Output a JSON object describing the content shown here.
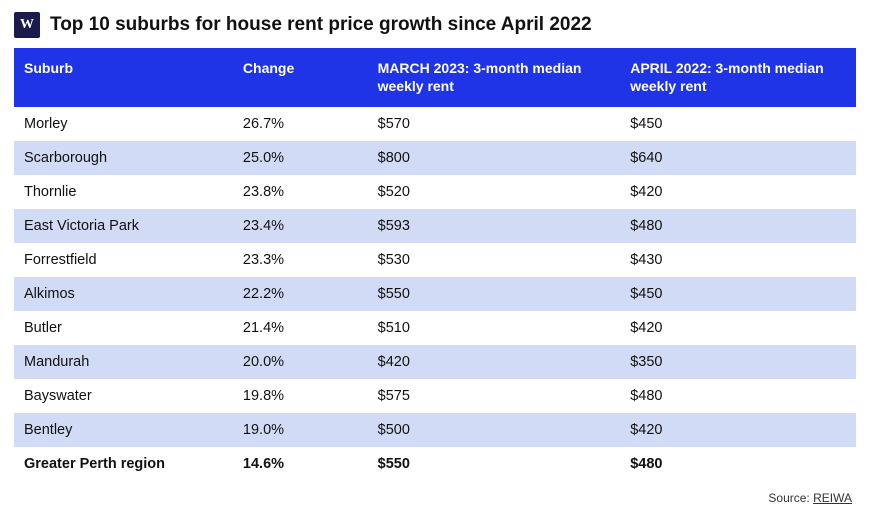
{
  "logo_text": "W",
  "title": "Top 10 suburbs for house rent price growth since April 2022",
  "colors": {
    "header_bg": "#1f33e7",
    "header_text": "#ffffff",
    "row_alt_bg": "#d2dbf5",
    "row_bg": "#ffffff",
    "text": "#111111",
    "logo_bg": "#1a1a4d"
  },
  "table": {
    "columns": [
      {
        "key": "suburb",
        "label": "Suburb"
      },
      {
        "key": "change",
        "label": "Change"
      },
      {
        "key": "mar2023",
        "label": "MARCH 2023: 3-month median weekly rent"
      },
      {
        "key": "apr2022",
        "label": "APRIL 2022: 3-month median weekly rent"
      }
    ],
    "rows": [
      {
        "suburb": "Morley",
        "change": "26.7%",
        "mar2023": "$570",
        "apr2022": "$450"
      },
      {
        "suburb": "Scarborough",
        "change": "25.0%",
        "mar2023": "$800",
        "apr2022": "$640"
      },
      {
        "suburb": "Thornlie",
        "change": "23.8%",
        "mar2023": "$520",
        "apr2022": "$420"
      },
      {
        "suburb": "East Victoria Park",
        "change": "23.4%",
        "mar2023": "$593",
        "apr2022": "$480"
      },
      {
        "suburb": "Forrestfield",
        "change": "23.3%",
        "mar2023": "$530",
        "apr2022": "$430"
      },
      {
        "suburb": "Alkimos",
        "change": "22.2%",
        "mar2023": "$550",
        "apr2022": "$450"
      },
      {
        "suburb": "Butler",
        "change": "21.4%",
        "mar2023": "$510",
        "apr2022": "$420"
      },
      {
        "suburb": "Mandurah",
        "change": "20.0%",
        "mar2023": "$420",
        "apr2022": "$350"
      },
      {
        "suburb": "Bayswater",
        "change": "19.8%",
        "mar2023": "$575",
        "apr2022": "$480"
      },
      {
        "suburb": "Bentley",
        "change": "19.0%",
        "mar2023": "$500",
        "apr2022": "$420"
      }
    ],
    "summary": {
      "suburb": "Greater Perth region",
      "change": "14.6%",
      "mar2023": "$550",
      "apr2022": "$480"
    }
  },
  "source": {
    "prefix": "Source: ",
    "name": "REIWA"
  }
}
